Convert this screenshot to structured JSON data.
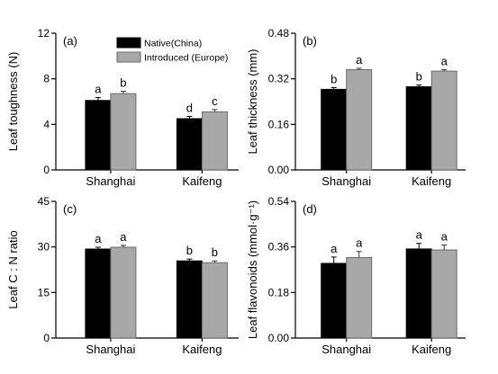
{
  "legend": [
    {
      "name": "Native(China)",
      "color": "#000000"
    },
    {
      "name": "Introduced (Europe)",
      "color": "#a8a8a8"
    }
  ],
  "chart_data": [
    {
      "type": "bar",
      "panel": "(a)",
      "ylabel": "Leaf toughness (N)",
      "ylim": [
        0,
        12
      ],
      "yticks": [
        "0",
        "4",
        "8",
        "12"
      ],
      "categories": [
        "Shanghai",
        "Kaifeng"
      ],
      "series": [
        {
          "name": "Native(China)",
          "values": [
            6.1,
            4.5
          ],
          "errors": [
            0.25,
            0.2
          ],
          "letters": [
            "a",
            "d"
          ]
        },
        {
          "name": "Introduced (Europe)",
          "values": [
            6.7,
            5.1
          ],
          "errors": [
            0.2,
            0.2
          ],
          "letters": [
            "b",
            "c"
          ]
        }
      ],
      "grid": false,
      "legend_position": "top-right"
    },
    {
      "type": "bar",
      "panel": "(b)",
      "ylabel": "Leaf thickness (mm)",
      "ylim": [
        0,
        0.48
      ],
      "yticks": [
        "0.00",
        "0.16",
        "0.32",
        "0.48"
      ],
      "categories": [
        "Shanghai",
        "Kaifeng"
      ],
      "series": [
        {
          "name": "Native(China)",
          "values": [
            0.283,
            0.292
          ],
          "errors": [
            0.006,
            0.006
          ],
          "letters": [
            "b",
            "b"
          ]
        },
        {
          "name": "Introduced (Europe)",
          "values": [
            0.352,
            0.347
          ],
          "errors": [
            0.005,
            0.005
          ],
          "letters": [
            "a",
            "a"
          ]
        }
      ],
      "grid": false
    },
    {
      "type": "bar",
      "panel": "(c)",
      "ylabel": "Leaf C : N ratio",
      "ylim": [
        0,
        45
      ],
      "yticks": [
        "0",
        "15",
        "30",
        "45"
      ],
      "categories": [
        "Shanghai",
        "Kaifeng"
      ],
      "series": [
        {
          "name": "Native(China)",
          "values": [
            29.3,
            25.4
          ],
          "errors": [
            0.6,
            0.6
          ],
          "letters": [
            "a",
            "b"
          ]
        },
        {
          "name": "Introduced (Europe)",
          "values": [
            29.9,
            24.8
          ],
          "errors": [
            0.6,
            0.6
          ],
          "letters": [
            "a",
            "b"
          ]
        }
      ],
      "grid": false
    },
    {
      "type": "bar",
      "panel": "(d)",
      "ylabel": "Leaf flavonoids (mmol·g⁻¹)",
      "ylim": [
        0,
        0.54
      ],
      "yticks": [
        "0.00",
        "0.18",
        "0.36",
        "0.54"
      ],
      "categories": [
        "Shanghai",
        "Kaifeng"
      ],
      "series": [
        {
          "name": "Native(China)",
          "values": [
            0.295,
            0.352
          ],
          "errors": [
            0.025,
            0.022
          ],
          "letters": [
            "a",
            "a"
          ]
        },
        {
          "name": "Introduced (Europe)",
          "values": [
            0.318,
            0.348
          ],
          "errors": [
            0.024,
            0.02
          ],
          "letters": [
            "a",
            "a"
          ]
        }
      ],
      "grid": false
    }
  ]
}
